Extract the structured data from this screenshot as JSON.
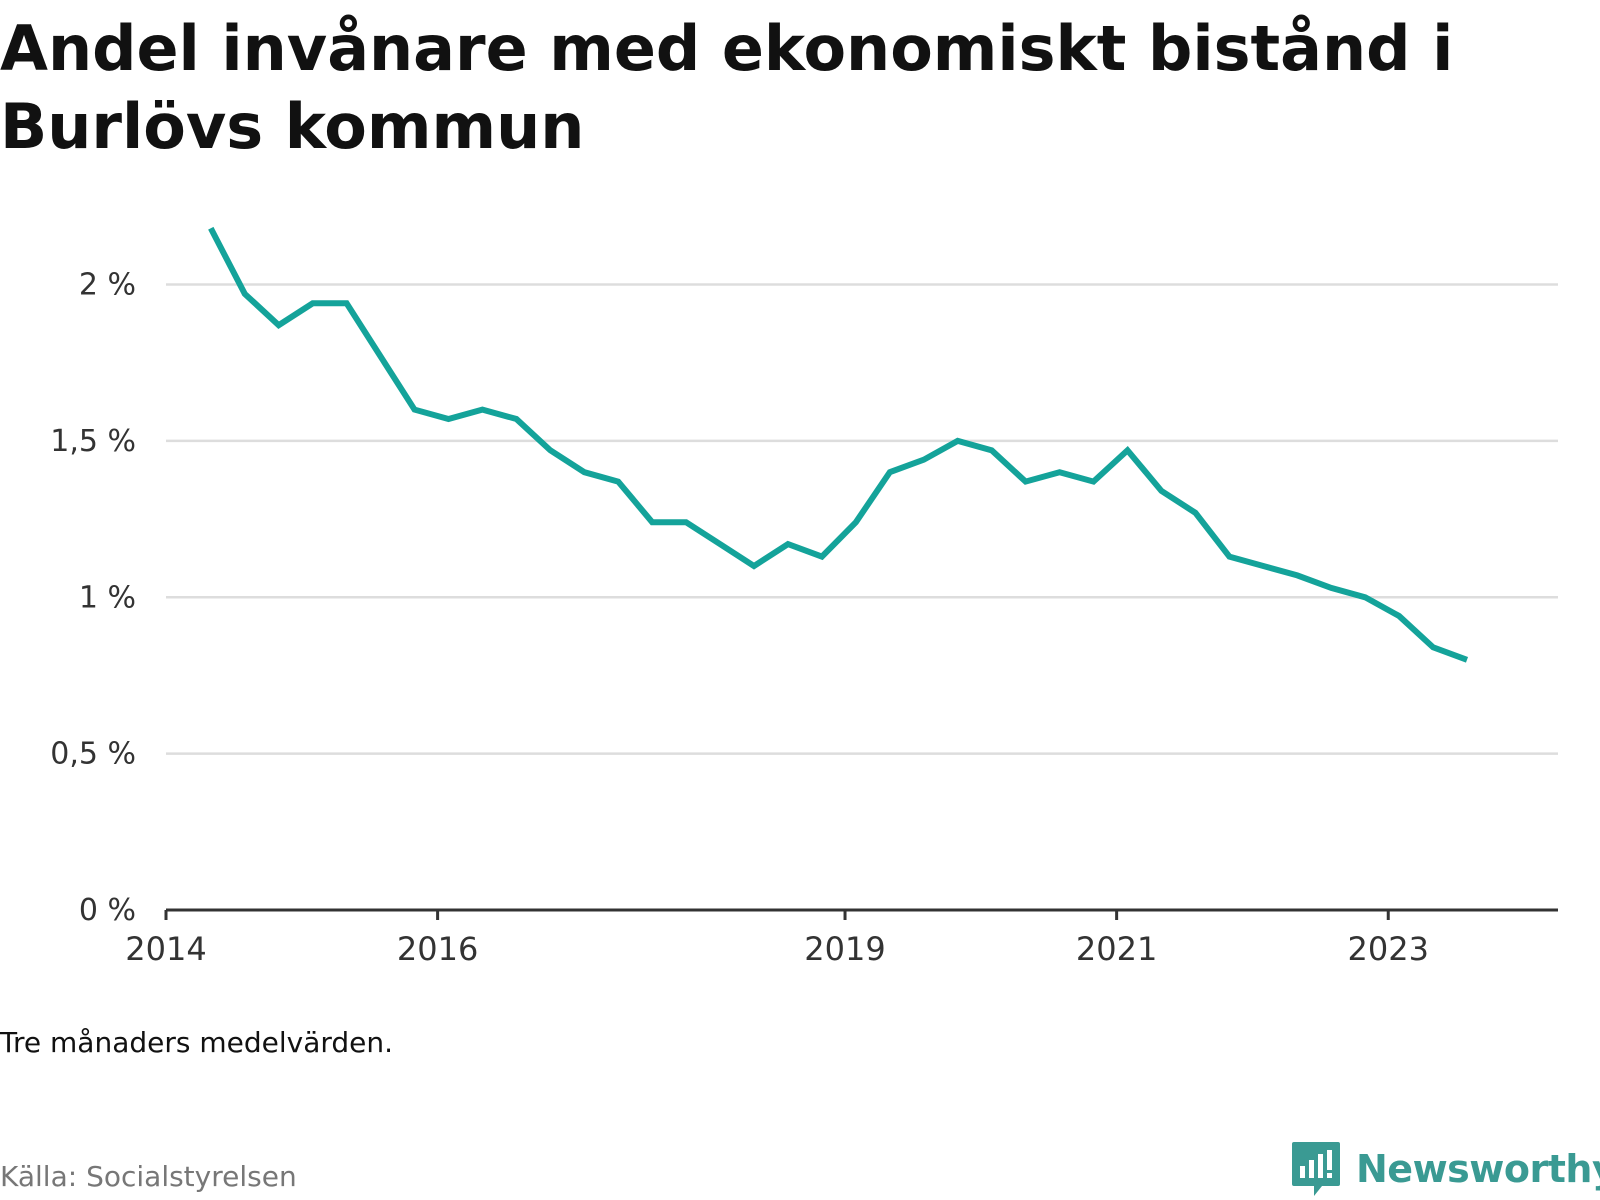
{
  "title": "Andel invånare med ekonomiskt bistånd i Burlövs kommun",
  "note": "Tre månaders medelvärden.",
  "source": "Källa: Socialstyrelsen",
  "brand": {
    "name": "Newsworthy",
    "icon": "newsworthy-logo-icon",
    "color": "#3a9a93"
  },
  "colors": {
    "line": "#14a39a",
    "grid": "#dddddd",
    "axis": "#333333"
  },
  "chart_data": {
    "type": "line",
    "title": "Andel invånare med ekonomiskt bistånd i Burlövs kommun",
    "xlabel": "",
    "ylabel": "",
    "ylim": [
      0,
      2.2
    ],
    "xlim": [
      2014.0,
      2024.25
    ],
    "grid": true,
    "legend": "none",
    "yticks": [
      {
        "value": 0,
        "label": "0 %"
      },
      {
        "value": 0.5,
        "label": "0,5 %"
      },
      {
        "value": 1,
        "label": "1 %"
      },
      {
        "value": 1.5,
        "label": "1,5 %"
      },
      {
        "value": 2,
        "label": "2 %"
      }
    ],
    "xticks": [
      {
        "value": 2014,
        "label": "2014"
      },
      {
        "value": 2016,
        "label": "2016"
      },
      {
        "value": 2019,
        "label": "2019"
      },
      {
        "value": 2021,
        "label": "2021"
      },
      {
        "value": 2023,
        "label": "2023"
      }
    ],
    "series": [
      {
        "x": [
          2014.33,
          2014.58,
          2014.83,
          2015.08,
          2015.33,
          2015.58,
          2015.83,
          2016.08,
          2016.33,
          2016.58,
          2016.83,
          2017.08,
          2017.33,
          2017.58,
          2017.83,
          2018.08,
          2018.33,
          2018.58,
          2018.83,
          2019.08,
          2019.33,
          2019.58,
          2019.83,
          2020.08,
          2020.33,
          2020.58,
          2020.83,
          2021.08,
          2021.33,
          2021.58,
          2021.83,
          2022.08,
          2022.33,
          2022.58,
          2022.83,
          2023.08,
          2023.33,
          2023.58
        ],
        "values": [
          2.18,
          1.97,
          1.87,
          1.94,
          1.94,
          1.77,
          1.6,
          1.57,
          1.6,
          1.57,
          1.47,
          1.4,
          1.37,
          1.24,
          1.24,
          1.17,
          1.1,
          1.17,
          1.13,
          1.24,
          1.4,
          1.44,
          1.5,
          1.47,
          1.37,
          1.4,
          1.37,
          1.47,
          1.34,
          1.27,
          1.13,
          1.1,
          1.07,
          1.03,
          1.0,
          0.94,
          0.84,
          0.8
        ]
      }
    ]
  }
}
